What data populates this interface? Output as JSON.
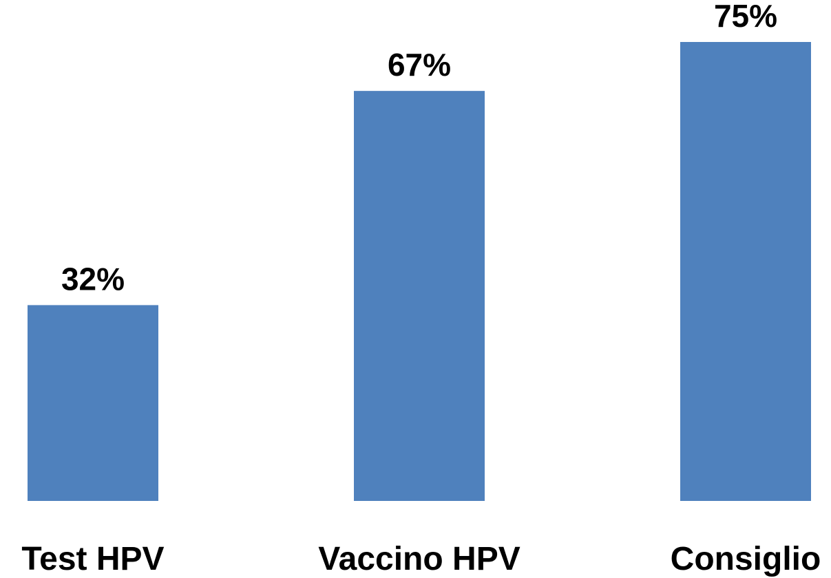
{
  "chart_data": {
    "type": "bar",
    "categories": [
      "Test HPV",
      "Vaccino HPV",
      "Consiglio"
    ],
    "values": [
      32,
      67,
      75
    ],
    "value_labels": [
      "32%",
      "67%",
      "75%"
    ],
    "color": "#4f81bd"
  }
}
